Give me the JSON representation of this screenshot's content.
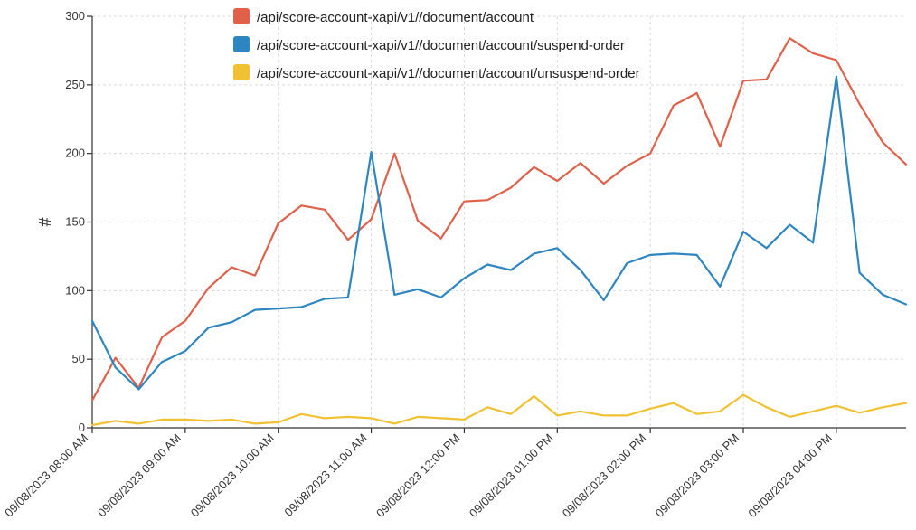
{
  "chart_data": {
    "type": "line",
    "ylabel": "#",
    "xlabel": "",
    "ylim": [
      0,
      300
    ],
    "yticks": [
      0,
      50,
      100,
      150,
      200,
      250,
      300
    ],
    "grid": true,
    "legend_position": "top",
    "x": [
      "09/08/2023 08:00 AM",
      "",
      "",
      "",
      "09/08/2023 09:00 AM",
      "",
      "",
      "",
      "09/08/2023 10:00 AM",
      "",
      "",
      "",
      "09/08/2023 11:00 AM",
      "",
      "",
      "",
      "09/08/2023 12:00 PM",
      "",
      "",
      "",
      "09/08/2023 01:00 PM",
      "",
      "",
      "",
      "09/08/2023 02:00 PM",
      "",
      "",
      "",
      "09/08/2023 03:00 PM",
      "",
      "",
      "",
      "09/08/2023 04:00 PM",
      "",
      "",
      ""
    ],
    "series": [
      {
        "name": "/api/score-account-xapi/v1//document/account",
        "color": "#e0604a",
        "values": [
          20,
          51,
          29,
          66,
          78,
          102,
          117,
          111,
          149,
          162,
          159,
          137,
          152,
          200,
          151,
          138,
          165,
          166,
          175,
          190,
          180,
          193,
          178,
          191,
          200,
          235,
          244,
          205,
          253,
          254,
          284,
          273,
          268,
          236,
          208,
          192
        ]
      },
      {
        "name": "/api/score-account-xapi/v1//document/account/suspend-order",
        "color": "#2e86c1",
        "values": [
          78,
          44,
          28,
          48,
          56,
          73,
          77,
          86,
          87,
          88,
          94,
          95,
          201,
          97,
          101,
          95,
          109,
          119,
          115,
          127,
          131,
          115,
          93,
          120,
          126,
          127,
          126,
          103,
          143,
          131,
          148,
          135,
          256,
          113,
          97,
          90
        ]
      },
      {
        "name": "/api/score-account-xapi/v1//document/account/unsuspend-order",
        "color": "#f0c233",
        "values": [
          2,
          5,
          3,
          6,
          6,
          5,
          6,
          3,
          4,
          10,
          7,
          8,
          7,
          3,
          8,
          7,
          6,
          15,
          10,
          23,
          9,
          12,
          9,
          9,
          14,
          18,
          10,
          12,
          24,
          15,
          8,
          12,
          16,
          11,
          15,
          18
        ]
      }
    ]
  }
}
